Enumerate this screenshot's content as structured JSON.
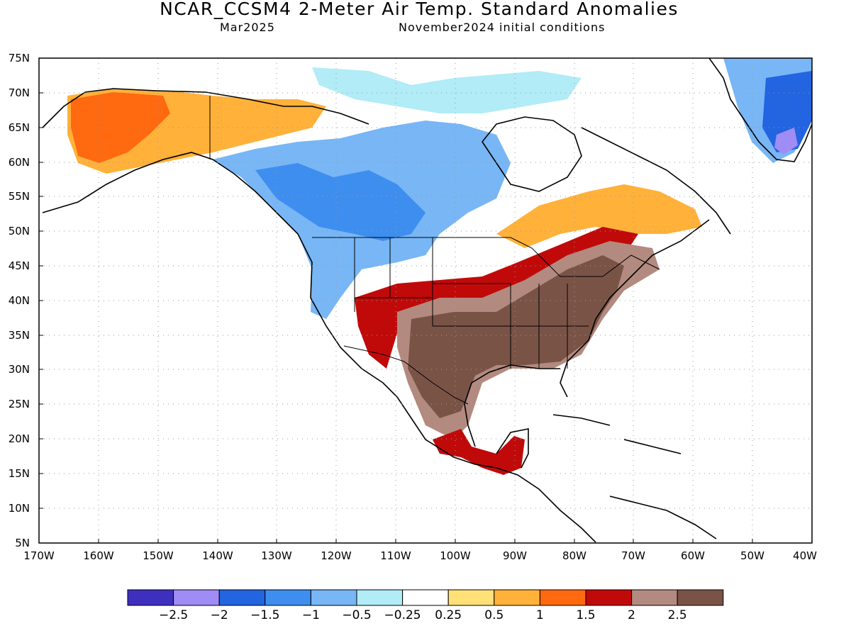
{
  "title": "NCAR_CCSM4 2-Meter Air Temp. Standard Anomalies",
  "subtitle_left": "Mar2025",
  "subtitle_right": "November2024 initial conditions",
  "map_extent": {
    "lon_min": -170,
    "lon_max": -40,
    "lat_min": 5,
    "lat_max": 75
  },
  "lat_labels": [
    "5N",
    "10N",
    "15N",
    "20N",
    "25N",
    "30N",
    "35N",
    "40N",
    "45N",
    "50N",
    "55N",
    "60N",
    "65N",
    "70N",
    "75N"
  ],
  "lon_labels": [
    "170W",
    "160W",
    "150W",
    "140W",
    "130W",
    "120W",
    "110W",
    "100W",
    "90W",
    "80W",
    "70W",
    "60W",
    "50W",
    "40W"
  ],
  "colorbar": {
    "colors": [
      "#3f2fbf",
      "#a08cf5",
      "#2364e0",
      "#3e8ef0",
      "#78b6f5",
      "#b1ecf7",
      "#ffffff",
      "#ffe178",
      "#ffb13a",
      "#ff6910",
      "#c00a0a",
      "#b38a7f",
      "#7a5347"
    ],
    "labels": [
      "−2.5",
      "−2",
      "−1.5",
      "−1",
      "−0.5",
      "−0.25",
      "0.25",
      "0.5",
      "1",
      "1.5",
      "2",
      "2.5"
    ]
  },
  "anomaly_regions": [
    {
      "name": "western-canada-cold",
      "color": "#78b6f5"
    },
    {
      "name": "canadian-prairies-cold",
      "color": "#3e8ef0"
    },
    {
      "name": "greenland-cold",
      "color": "#78b6f5"
    },
    {
      "name": "greenland-strong-cold",
      "color": "#2364e0"
    },
    {
      "name": "greenland-core-cold",
      "color": "#a08cf5"
    },
    {
      "name": "arctic-islands-slight-cold",
      "color": "#b1ecf7"
    },
    {
      "name": "alaska-warm",
      "color": "#ffb13a"
    },
    {
      "name": "alaska-strong-warm",
      "color": "#ff6910"
    },
    {
      "name": "southern-us-very-warm",
      "color": "#7a5347"
    },
    {
      "name": "eastern-us-warm",
      "color": "#b38a7f"
    },
    {
      "name": "central-us-warm",
      "color": "#c00a0a"
    },
    {
      "name": "quebec-warm",
      "color": "#ffb13a"
    },
    {
      "name": "mexico-warm",
      "color": "#c00a0a"
    }
  ]
}
